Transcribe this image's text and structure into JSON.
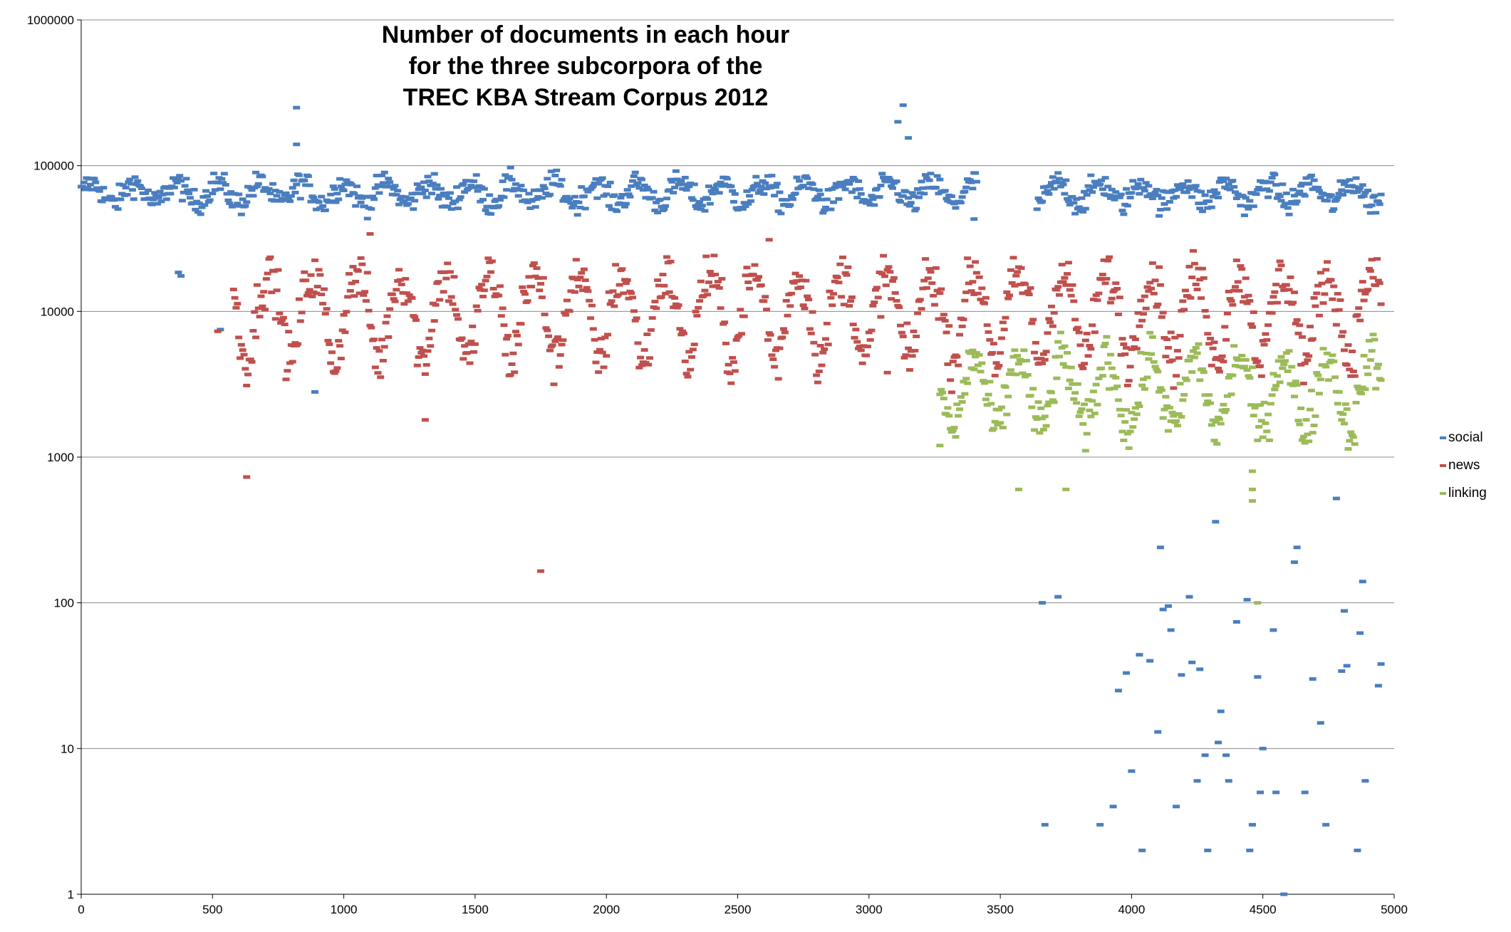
{
  "chart_data": {
    "type": "scatter",
    "title_lines": [
      "Number of documents in each hour",
      "for the three subcorpora of the",
      "TREC KBA Stream Corpus 2012"
    ],
    "xlabel": "",
    "ylabel": "",
    "xlim": [
      0,
      5000
    ],
    "ylim": [
      1,
      1000000
    ],
    "yscale": "log",
    "x_ticks": [
      "0",
      "500",
      "1000",
      "1500",
      "2000",
      "2500",
      "3000",
      "3500",
      "4000",
      "4500",
      "5000"
    ],
    "y_ticks": [
      "1",
      "10",
      "100",
      "1000",
      "10000",
      "100000",
      "1000000"
    ],
    "grid": "horizontal",
    "legend_position": "right",
    "series": [
      {
        "name": "social",
        "color": "#4a7ebf",
        "hour_range": [
          0,
          4950
        ],
        "gap_hours": [
          3410,
          3640
        ],
        "median": 65000,
        "spread": 0.085,
        "cycle_amplitude": 0.07,
        "cycle_hours": 160,
        "outliers": [
          [
            370,
            18500
          ],
          [
            380,
            17500
          ],
          [
            530,
            7500
          ],
          [
            820,
            250000
          ],
          [
            820,
            140000
          ],
          [
            890,
            2800
          ],
          [
            3110,
            200000
          ],
          [
            3130,
            260000
          ],
          [
            3150,
            155000
          ],
          [
            3400,
            43000
          ],
          [
            3660,
            100
          ],
          [
            3670,
            3
          ],
          [
            3720,
            110
          ],
          [
            3880,
            3
          ],
          [
            3930,
            4
          ],
          [
            3950,
            25
          ],
          [
            3980,
            33
          ],
          [
            4000,
            7
          ],
          [
            4030,
            44
          ],
          [
            4040,
            2
          ],
          [
            4070,
            40
          ],
          [
            4100,
            13
          ],
          [
            4110,
            240
          ],
          [
            4120,
            90
          ],
          [
            4140,
            95
          ],
          [
            4150,
            65
          ],
          [
            4170,
            4
          ],
          [
            4190,
            32
          ],
          [
            4220,
            110
          ],
          [
            4230,
            39
          ],
          [
            4250,
            6
          ],
          [
            4260,
            35
          ],
          [
            4280,
            9
          ],
          [
            4290,
            2
          ],
          [
            4320,
            360
          ],
          [
            4330,
            11
          ],
          [
            4340,
            18
          ],
          [
            4360,
            9
          ],
          [
            4370,
            6
          ],
          [
            4400,
            74
          ],
          [
            4440,
            105
          ],
          [
            4450,
            2
          ],
          [
            4460,
            3
          ],
          [
            4480,
            31
          ],
          [
            4500,
            10
          ],
          [
            4490,
            5
          ],
          [
            4540,
            65
          ],
          [
            4550,
            5
          ],
          [
            4580,
            1
          ],
          [
            4620,
            190
          ],
          [
            4630,
            240
          ],
          [
            4660,
            5
          ],
          [
            4690,
            30
          ],
          [
            4720,
            15
          ],
          [
            4740,
            3
          ],
          [
            4780,
            520
          ],
          [
            4800,
            34
          ],
          [
            4810,
            88
          ],
          [
            4820,
            37
          ],
          [
            4860,
            2
          ],
          [
            4870,
            62
          ],
          [
            4880,
            140
          ],
          [
            4890,
            6
          ],
          [
            4940,
            27
          ],
          [
            4950,
            38
          ]
        ]
      },
      {
        "name": "news",
        "color": "#c0504d",
        "hour_range": [
          580,
          4950
        ],
        "gap_hours": [],
        "median": 11500,
        "spread": 0.17,
        "cycle_amplitude": 0.4,
        "cycle_hours": 168,
        "outliers": [
          [
            630,
            730
          ],
          [
            1310,
            1800
          ],
          [
            1750,
            165
          ],
          [
            1100,
            34000
          ],
          [
            2620,
            31000
          ],
          [
            520,
            7300
          ],
          [
            3070,
            3800
          ]
        ]
      },
      {
        "name": "linking",
        "color": "#9bbb59",
        "hour_range": [
          3270,
          4950
        ],
        "gap_hours": [],
        "median": 2800,
        "spread": 0.17,
        "cycle_amplitude": 0.25,
        "cycle_hours": 168,
        "outliers": [
          [
            3270,
            1200
          ],
          [
            3570,
            600
          ],
          [
            3750,
            600
          ],
          [
            4460,
            800
          ],
          [
            4460,
            600
          ],
          [
            4460,
            500
          ],
          [
            4480,
            100
          ]
        ]
      }
    ]
  }
}
